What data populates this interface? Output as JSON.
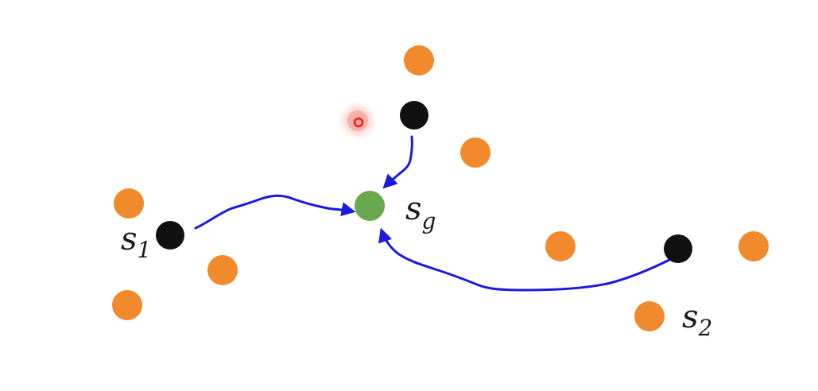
{
  "labels": {
    "s1": {
      "base": "s",
      "sub": "1"
    },
    "sg": {
      "base": "s",
      "sub": "g"
    },
    "s2": {
      "base": "s",
      "sub": "2"
    }
  },
  "colors": {
    "background": "#ffffff",
    "neighbor_dot": "#f08a2c",
    "start_dot": "#111111",
    "goal_dot": "#6aa84f",
    "path": "#1a1adc",
    "cursor_ring": "#e8201e",
    "cursor_glow": "#f6a79c"
  },
  "icons": {
    "cursor": "pointer-ring-icon"
  }
}
